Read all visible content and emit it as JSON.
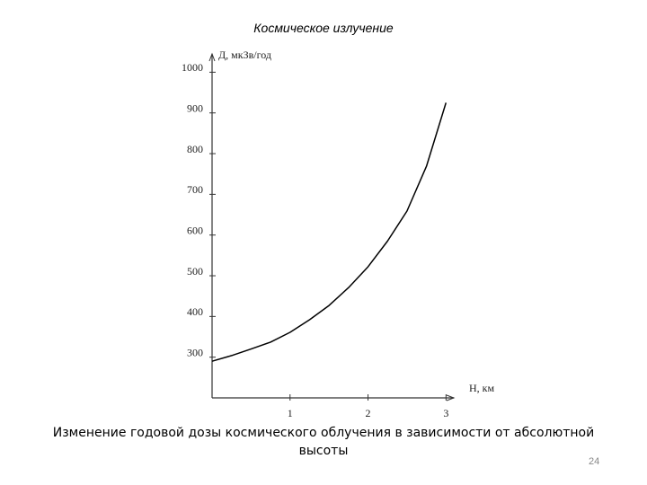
{
  "chart_data": {
    "type": "line",
    "title": "Космическое излучение",
    "y_label": "Д, мкЗв/год",
    "x_label": "Н, км",
    "caption": "Изменение годовой дозы космического облучения в зависимости от абсолютной высоты",
    "page_number": "24",
    "x": [
      0,
      0.25,
      0.5,
      0.75,
      1,
      1.25,
      1.5,
      1.75,
      2,
      2.25,
      2.5,
      2.75,
      3
    ],
    "series": [
      {
        "color": "#000000",
        "values": [
          290,
          304,
          320,
          337,
          361,
          392,
          427,
          471,
          522,
          585,
          659,
          769,
          925
        ]
      }
    ],
    "xlim": [
      0,
      3.1
    ],
    "ylim": [
      200,
      1045
    ],
    "xticks": [
      1,
      2,
      3
    ],
    "yticks": [
      300,
      400,
      500,
      600,
      700,
      800,
      900,
      1000
    ]
  }
}
